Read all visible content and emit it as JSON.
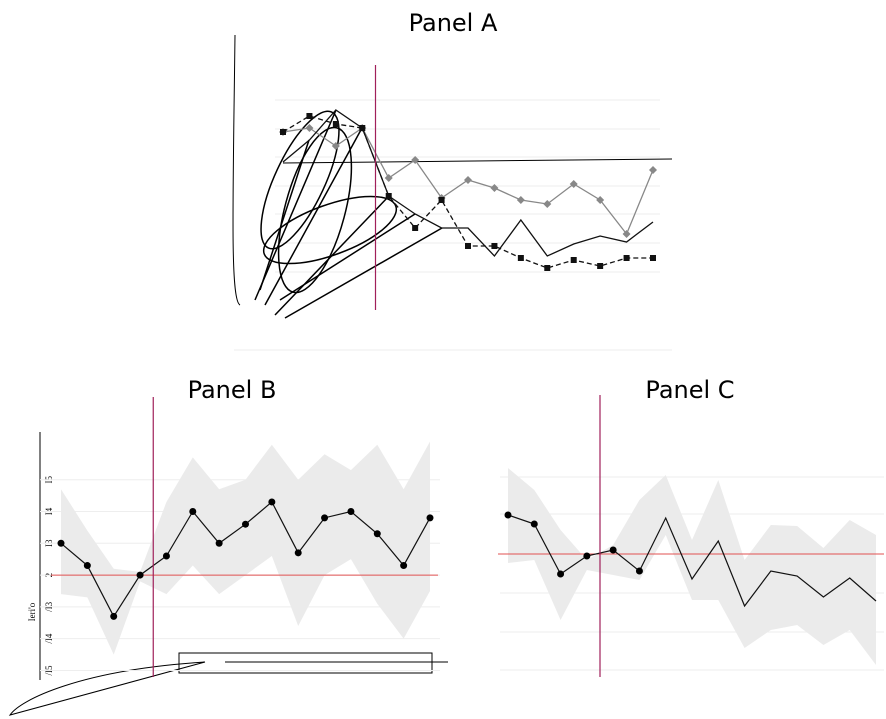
{
  "chart_data": [
    {
      "type": "line",
      "title": "Panel A",
      "x": [
        0,
        1,
        2,
        3,
        4,
        5,
        6,
        7,
        8,
        9,
        10,
        11,
        12,
        13,
        14
      ],
      "series": [
        {
          "color": "#888888",
          "marker": "diamond",
          "dash": false,
          "values": [
            8.4,
            8.6,
            7.7,
            8.6,
            6.1,
            7.0,
            5.1,
            6.0,
            5.6,
            5.0,
            4.8,
            5.8,
            5.0,
            3.3,
            6.5
          ]
        },
        {
          "color": "#111111",
          "marker": "square",
          "dash": true,
          "values": [
            8.4,
            9.2,
            8.8,
            8.6,
            5.2,
            3.6,
            5.0,
            2.7,
            2.7,
            2.1,
            1.6,
            2.0,
            1.7,
            2.1,
            2.1
          ]
        },
        {
          "color": "#111111",
          "marker": "none",
          "dash": false,
          "values": [
            6.9,
            8.0,
            9.5,
            8.6,
            5.2,
            4.3,
            3.6,
            3.6,
            2.2,
            4.0,
            2.2,
            2.8,
            3.2,
            2.9,
            3.9
          ]
        }
      ],
      "xlim": [
        0,
        14
      ],
      "ylim": [
        0,
        10
      ],
      "vline": 3.5,
      "vline_color": "#a0205a"
    },
    {
      "type": "band-line",
      "title": "Panel B",
      "ylabel": "Ieri'o",
      "x": [
        0,
        1,
        2,
        3,
        4,
        5,
        6,
        7,
        8,
        9,
        10,
        11,
        12,
        13,
        14
      ],
      "values": [
        3.0,
        2.3,
        0.7,
        2.0,
        2.6,
        4.0,
        3.0,
        3.6,
        4.3,
        2.7,
        3.8,
        4.0,
        3.3,
        2.3,
        3.8
      ],
      "band": {
        "upper": [
          4.7,
          3.4,
          2.2,
          2.1,
          4.3,
          5.7,
          4.7,
          5.0,
          6.1,
          5.0,
          5.8,
          5.3,
          6.1,
          4.7,
          6.2
        ],
        "lower": [
          1.4,
          1.3,
          -0.5,
          1.8,
          1.4,
          2.3,
          1.4,
          2.0,
          2.6,
          0.4,
          2.0,
          2.5,
          1.1,
          0.0,
          1.5
        ]
      },
      "xlim": [
        0,
        14
      ],
      "ylim": [
        -1.3,
        6.5
      ],
      "yticks": [
        {
          "value": -1,
          "label": "/I5"
        },
        {
          "value": 0,
          "label": "/I4"
        },
        {
          "value": 1,
          "label": "/I3"
        },
        2,
        {
          "value": 3,
          "label": "I3"
        },
        {
          "value": 4,
          "label": "I4"
        },
        {
          "value": 5,
          "label": "I5"
        }
      ],
      "hline": 2,
      "hline_color": "#e05050",
      "vline": 3.5,
      "vline_color": "#a0205a",
      "marker": "circle"
    },
    {
      "type": "band-line",
      "title": "Panel C",
      "x": [
        0,
        1,
        2,
        3,
        4,
        5,
        6,
        7,
        8,
        9,
        10,
        11,
        12,
        13,
        14
      ],
      "values": [
        16.5,
        15.6,
        10.6,
        12.4,
        13.0,
        10.9,
        16.2,
        10.1,
        13.9,
        7.4,
        10.9,
        10.4,
        8.3,
        10.2,
        7.9
      ],
      "band": {
        "upper": [
          21.2,
          19.0,
          15.0,
          12.0,
          13.5,
          18.0,
          20.5,
          14.0,
          20.0,
          12.0,
          15.5,
          15.4,
          13.2,
          16.0,
          14.5
        ],
        "lower": [
          11.7,
          12.0,
          6.0,
          11.0,
          10.5,
          10.0,
          14.5,
          8.0,
          8.0,
          3.2,
          5.0,
          5.5,
          3.5,
          5.0,
          1.5
        ]
      },
      "xlim": [
        0,
        14
      ],
      "ylim": [
        0,
        25
      ],
      "hline": 12.6,
      "hline_color": "#e05050",
      "vline": 3.5,
      "vline_color": "#a0205a",
      "marker": "circle",
      "marker_count": 6
    }
  ]
}
